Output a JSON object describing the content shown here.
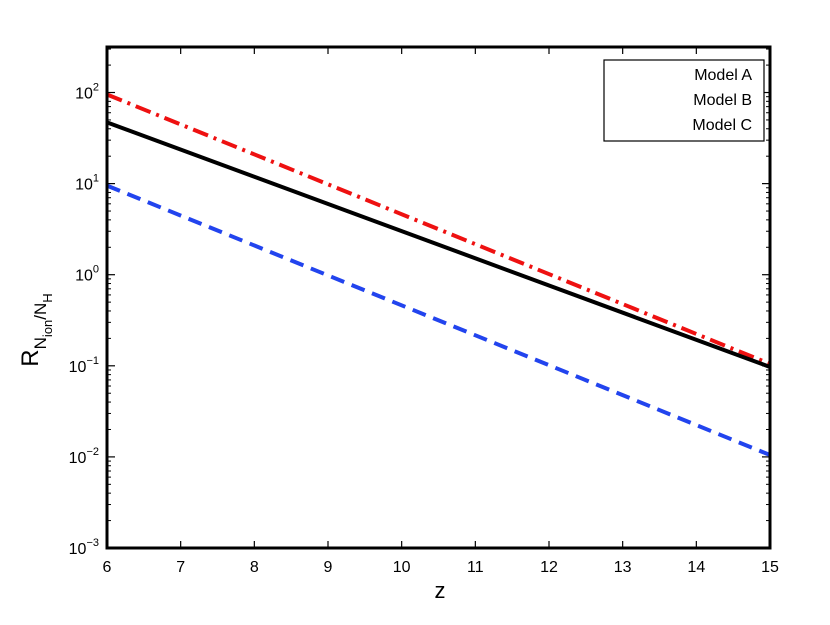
{
  "chart_data": {
    "type": "line",
    "xlabel": "z",
    "ylabel": {
      "base": "R",
      "sub1": "N",
      "sub1_sub": "ion",
      "slash": "/N",
      "sub2_sub": "H"
    },
    "xlim": [
      6,
      15
    ],
    "ylim": [
      0.001,
      316
    ],
    "yscale": "log",
    "xticks": [
      6,
      7,
      8,
      9,
      10,
      11,
      12,
      13,
      14,
      15
    ],
    "yticks": [
      {
        "value": 0.001,
        "base": "10",
        "exp": "−3"
      },
      {
        "value": 0.01,
        "base": "10",
        "exp": "−2"
      },
      {
        "value": 0.1,
        "base": "10",
        "exp": "−1"
      },
      {
        "value": 1,
        "base": "10",
        "exp": "0"
      },
      {
        "value": 10,
        "base": "10",
        "exp": "1"
      },
      {
        "value": 100,
        "base": "10",
        "exp": "2"
      }
    ],
    "legend_position": "top-right",
    "series": [
      {
        "name": "Model A",
        "color": "#ee1111",
        "style": "dash-dot",
        "x": [
          6,
          15
        ],
        "y": [
          95,
          0.105
        ]
      },
      {
        "name": "Model B",
        "color": "#2244ee",
        "style": "dashed",
        "x": [
          6,
          15
        ],
        "y": [
          9.5,
          0.0105
        ]
      },
      {
        "name": "Model C",
        "color": "#000000",
        "style": "solid",
        "x": [
          6,
          15
        ],
        "y": [
          47,
          0.097
        ]
      }
    ]
  }
}
